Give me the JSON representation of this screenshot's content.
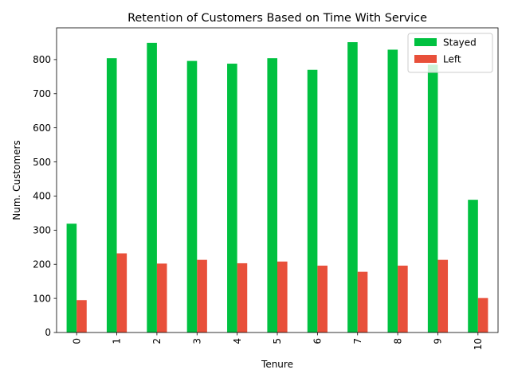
{
  "chart_data": {
    "type": "bar",
    "title": "Retention of Customers Based on Time With Service",
    "xlabel": "Tenure",
    "ylabel": "Num. Customers",
    "categories": [
      "0",
      "1",
      "2",
      "3",
      "4",
      "5",
      "6",
      "7",
      "8",
      "9",
      "10"
    ],
    "series": [
      {
        "name": "Stayed",
        "color": "#00c140",
        "values": [
          319,
          804,
          849,
          796,
          788,
          804,
          770,
          851,
          829,
          785,
          389
        ]
      },
      {
        "name": "Left",
        "color": "#e8503a",
        "values": [
          95,
          232,
          202,
          213,
          203,
          208,
          196,
          178,
          196,
          213,
          101
        ]
      }
    ],
    "ylim": [
      0,
      893
    ],
    "yticks": [
      0,
      100,
      200,
      300,
      400,
      500,
      600,
      700,
      800
    ],
    "grid": false,
    "legend_position": "top-right"
  }
}
